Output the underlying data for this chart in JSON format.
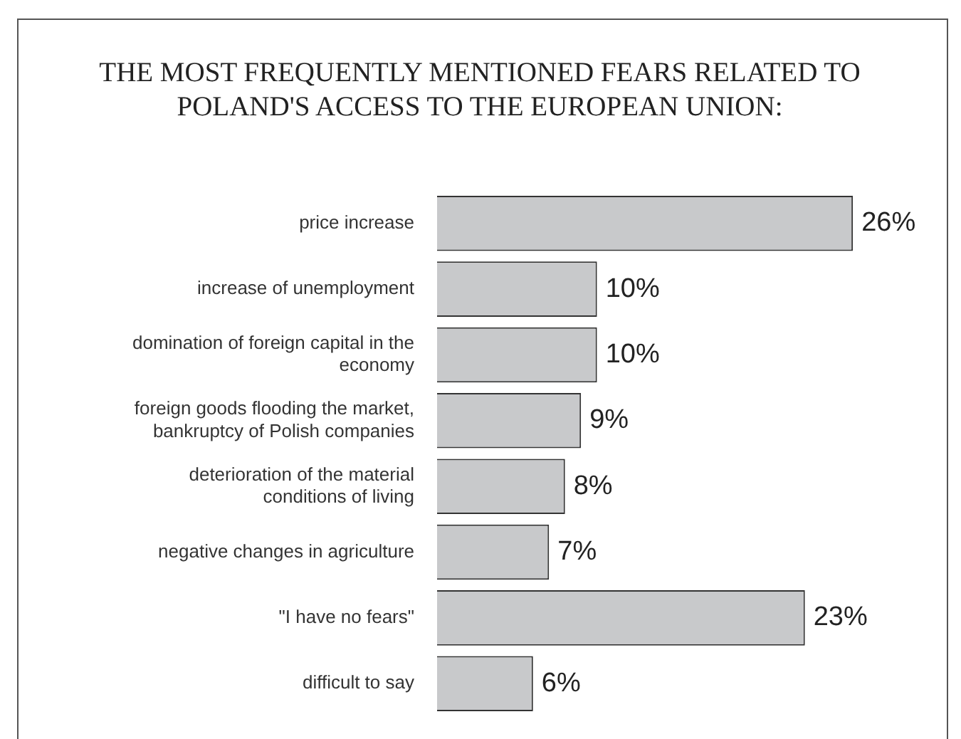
{
  "chart_data": {
    "type": "bar",
    "orientation": "horizontal",
    "title": "THE MOST FREQUENTLY MENTIONED FEARS RELATED TO POLAND'S ACCESS TO THE EUROPEAN UNION:",
    "categories": [
      "price increase",
      "increase of unemployment",
      "domination of foreign capital in the economy",
      "foreign goods flooding the market, bankruptcy of Polish companies",
      "deterioration of the material conditions of living",
      "negative changes in agriculture",
      "\"I have no fears\"",
      "difficult to say"
    ],
    "values": [
      26,
      10,
      10,
      9,
      8,
      7,
      23,
      6
    ],
    "value_labels": [
      "26%",
      "10%",
      "10%",
      "9%",
      "8%",
      "7%",
      "23%",
      "6%"
    ],
    "color": "#c8c9cb",
    "legend": false,
    "tick_labels": "y"
  }
}
